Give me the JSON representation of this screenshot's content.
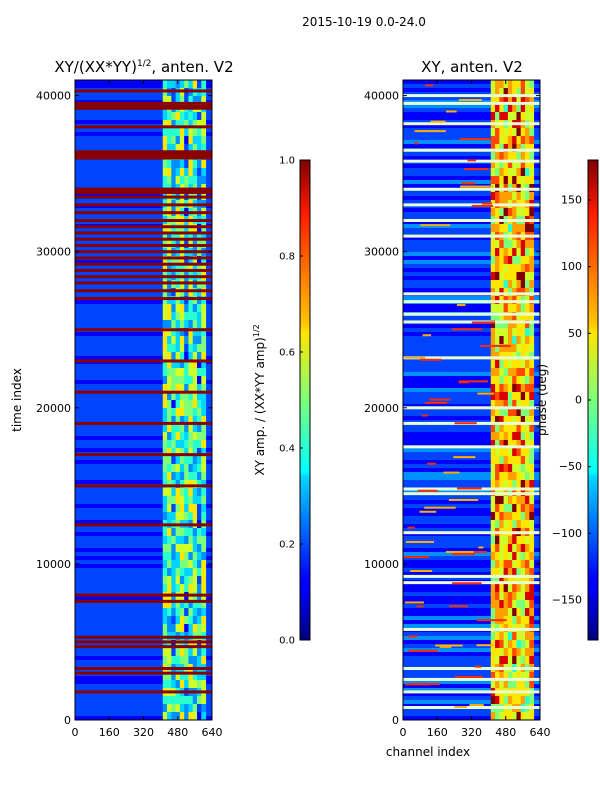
{
  "figure": {
    "suptitle": "2015-10-19 0.0-24.0"
  },
  "chart_data": [
    {
      "type": "heatmap",
      "title_main": "XY/(XX*YY)",
      "title_sup": "1/2",
      "title_tail": ", anten. V2",
      "xlabel": "",
      "ylabel": "time index",
      "xlim": [
        0,
        640
      ],
      "ylim": [
        0,
        41000
      ],
      "xticks": [
        0,
        160,
        320,
        480,
        640
      ],
      "yticks": [
        0,
        10000,
        20000,
        30000,
        40000
      ],
      "bright_band": [
        410,
        610
      ],
      "flag_rows": [
        1800,
        3000,
        3300,
        4700,
        5000,
        5300,
        7600,
        8000,
        12500,
        15000,
        17000,
        19000,
        21000,
        23000,
        25000,
        27000,
        27500,
        28000,
        28400,
        28800,
        29200,
        29600,
        30000,
        30400,
        30800,
        31200,
        31600,
        32000,
        32500,
        33000,
        33500,
        34000,
        36000,
        36300,
        38000,
        39200,
        39500,
        40300
      ],
      "colorbar": {
        "label_main": "XY amp. / (XX*YY amp)",
        "label_sup": "1/2",
        "min": 0.0,
        "max": 1.0,
        "ticks": [
          "0.0",
          "0.2",
          "0.4",
          "0.6",
          "0.8",
          "1.0"
        ],
        "tick_values": [
          0,
          0.2,
          0.4,
          0.6,
          0.8,
          1.0
        ]
      }
    },
    {
      "type": "heatmap",
      "title": "XY, anten. V2",
      "xlabel": "channel index",
      "ylabel": "",
      "xlim": [
        0,
        640
      ],
      "ylim": [
        0,
        41000
      ],
      "xticks": [
        0,
        160,
        320,
        480,
        640
      ],
      "yticks": [
        0,
        10000,
        20000,
        30000,
        40000
      ],
      "bright_band": [
        410,
        610
      ],
      "flag_rows": [
        800,
        1800,
        2600,
        3300,
        5800,
        8800,
        9200,
        12000,
        14500,
        14800,
        17500,
        19000,
        20000,
        23200,
        25500,
        26000,
        26800,
        27300,
        31000,
        32000,
        33000,
        34000,
        35800,
        36500,
        38200,
        39500,
        40000
      ],
      "colorbar": {
        "label": "phase (deg)",
        "min": -180,
        "max": 180,
        "ticks": [
          "150",
          "100",
          "50",
          "0",
          "−50",
          "−100",
          "−150"
        ],
        "tick_values": [
          150,
          100,
          50,
          0,
          -50,
          -100,
          -150
        ]
      }
    }
  ]
}
